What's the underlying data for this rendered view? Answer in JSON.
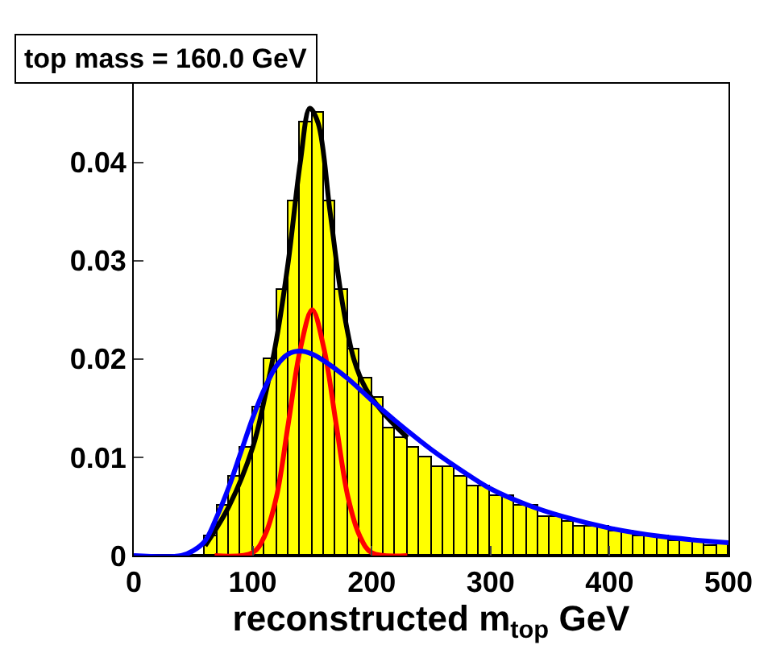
{
  "chart_data": {
    "type": "histogram",
    "title": "top mass = 160.0 GeV",
    "xlabel": "reconstructed m$_{top}$ GeV",
    "xlim": [
      0,
      500
    ],
    "xticks": [
      0,
      100,
      200,
      300,
      400,
      500
    ],
    "ylim": [
      0,
      0.048
    ],
    "yticks": [
      0,
      0.01,
      0.02,
      0.03,
      0.04
    ],
    "series": [
      {
        "color": "#ffff00",
        "bins": [
          0,
          10,
          20,
          30,
          40,
          50,
          60,
          70,
          80,
          90,
          100,
          110,
          120,
          130,
          140,
          150,
          160,
          170,
          180,
          190,
          200,
          210,
          220,
          230,
          240,
          250,
          260,
          270,
          280,
          290,
          300,
          310,
          320,
          330,
          340,
          350,
          360,
          370,
          380,
          390,
          400,
          410,
          420,
          430,
          440,
          450,
          460,
          470,
          480,
          490,
          500
        ],
        "values": [
          0,
          0,
          0,
          0,
          0,
          0,
          0.002,
          0.005,
          0.008,
          0.011,
          0.015,
          0.02,
          0.027,
          0.036,
          0.044,
          0.045,
          0.036,
          0.027,
          0.021,
          0.018,
          0.016,
          0.013,
          0.012,
          0.011,
          0.01,
          0.009,
          0.009,
          0.008,
          0.007,
          0.007,
          0.006,
          0.006,
          0.005,
          0.005,
          0.004,
          0.004,
          0.0035,
          0.003,
          0.003,
          0.003,
          0.0025,
          0.0025,
          0.002,
          0.002,
          0.002,
          0.0015,
          0.0015,
          0.0015,
          0.001,
          0.0012
        ]
      },
      {
        "type": "line",
        "color": "#000000",
        "x": [
          60,
          80,
          100,
          110,
          120,
          130,
          140,
          148,
          155,
          165,
          175,
          185,
          195,
          210,
          230
        ],
        "values": [
          0.001,
          0.005,
          0.011,
          0.016,
          0.022,
          0.03,
          0.04,
          0.0455,
          0.044,
          0.035,
          0.026,
          0.02,
          0.017,
          0.0145,
          0.012
        ]
      },
      {
        "type": "line",
        "color": "#ff0000",
        "x": [
          68,
          100,
          110,
          120,
          130,
          140,
          150,
          160,
          170,
          180,
          190,
          200,
          230
        ],
        "values": [
          0,
          0.0003,
          0.002,
          0.006,
          0.0135,
          0.021,
          0.025,
          0.021,
          0.0135,
          0.006,
          0.002,
          0.0003,
          0
        ]
      },
      {
        "type": "line",
        "color": "#0000ff",
        "x": [
          0,
          40,
          50,
          60,
          70,
          80,
          90,
          100,
          110,
          120,
          130,
          140,
          150,
          160,
          180,
          200,
          220,
          250,
          280,
          300,
          330,
          360,
          400,
          440,
          470,
          500
        ],
        "values": [
          0,
          0,
          0.0005,
          0.0015,
          0.004,
          0.007,
          0.0105,
          0.014,
          0.017,
          0.0193,
          0.0205,
          0.0208,
          0.0205,
          0.0198,
          0.018,
          0.0158,
          0.0137,
          0.0108,
          0.0083,
          0.0068,
          0.0052,
          0.004,
          0.0028,
          0.002,
          0.0016,
          0.0013
        ]
      }
    ]
  }
}
